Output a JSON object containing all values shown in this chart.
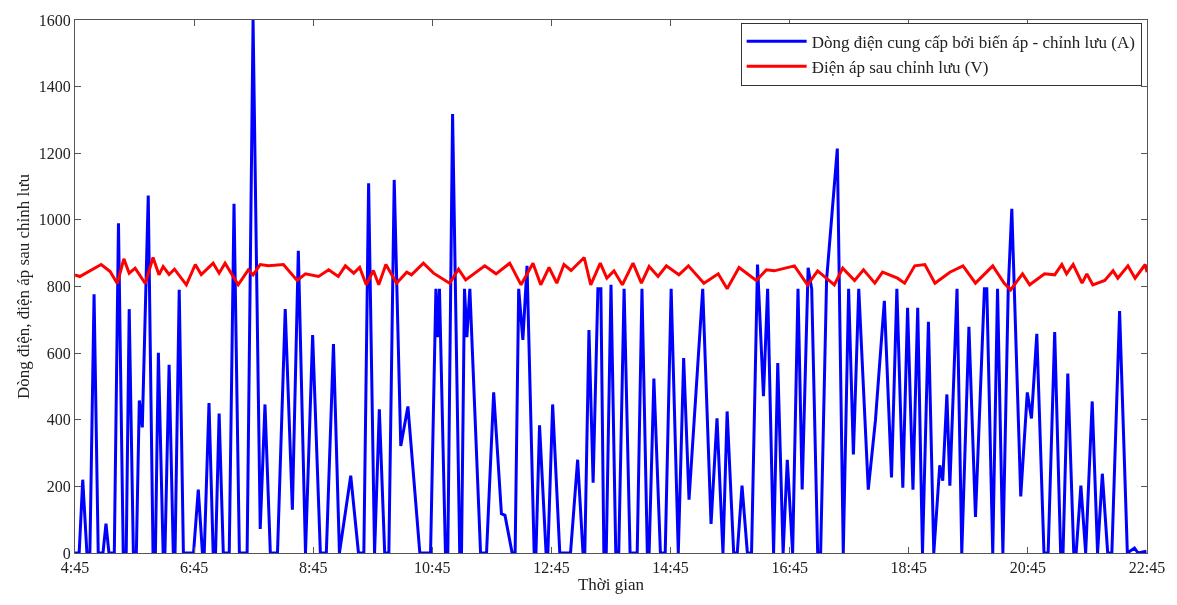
{
  "chart_data": {
    "type": "line",
    "xlabel": "Thời gian",
    "ylabel": "Dòng điện, điện áp sau chỉnh lưu",
    "xlim": [
      4.75,
      22.75
    ],
    "xticks": [
      {
        "value": 4.75,
        "label": "4:45"
      },
      {
        "value": 6.75,
        "label": "6:45"
      },
      {
        "value": 8.75,
        "label": "8:45"
      },
      {
        "value": 10.75,
        "label": "10:45"
      },
      {
        "value": 12.75,
        "label": "12:45"
      },
      {
        "value": 14.75,
        "label": "14:45"
      },
      {
        "value": 16.75,
        "label": "16:45"
      },
      {
        "value": 18.75,
        "label": "18:45"
      },
      {
        "value": 20.75,
        "label": "20:45"
      },
      {
        "value": 22.75,
        "label": "22:45"
      }
    ],
    "ylim": [
      0,
      1600
    ],
    "yticks": [
      0,
      200,
      400,
      600,
      800,
      1000,
      1200,
      1400,
      1600
    ],
    "legend": "top right",
    "line_style": "solid",
    "marker": "none",
    "series": [
      {
        "name": "Dòng điện cung cấp bởi biến áp - chỉnh lưu (A)",
        "color": "#0000ff",
        "x": [
          4.75,
          4.82,
          4.88,
          4.95,
          5.0,
          5.07,
          5.14,
          5.22,
          5.27,
          5.32,
          5.41,
          5.48,
          5.56,
          5.61,
          5.66,
          5.73,
          5.78,
          5.83,
          5.88,
          5.98,
          6.06,
          6.1,
          6.15,
          6.23,
          6.26,
          6.33,
          6.4,
          6.43,
          6.5,
          6.57,
          6.74,
          6.82,
          6.89,
          6.92,
          7.0,
          7.07,
          7.11,
          7.17,
          7.24,
          7.34,
          7.42,
          7.51,
          7.64,
          7.74,
          7.86,
          7.94,
          8.03,
          8.15,
          8.28,
          8.4,
          8.5,
          8.62,
          8.74,
          8.87,
          8.97,
          9.09,
          9.19,
          9.38,
          9.51,
          9.6,
          9.68,
          9.78,
          9.86,
          9.95,
          10.02,
          10.11,
          10.22,
          10.34,
          10.54,
          10.72,
          10.81,
          10.84,
          10.87,
          10.97,
          11.01,
          11.09,
          11.21,
          11.24,
          11.29,
          11.33,
          11.38,
          11.56,
          11.66,
          11.78,
          11.91,
          11.97,
          12.09,
          12.14,
          12.2,
          12.27,
          12.34,
          12.46,
          12.49,
          12.55,
          12.66,
          12.69,
          12.77,
          12.89,
          13.07,
          13.19,
          13.28,
          13.31,
          13.38,
          13.45,
          13.53,
          13.58,
          13.63,
          13.67,
          13.75,
          13.83,
          13.88,
          13.97,
          14.07,
          14.19,
          14.27,
          14.36,
          14.39,
          14.47,
          14.58,
          14.66,
          14.76,
          14.88,
          14.97,
          15.06,
          15.29,
          15.43,
          15.53,
          15.63,
          15.7,
          15.81,
          15.87,
          15.95,
          16.04,
          16.11,
          16.21,
          16.31,
          16.38,
          16.48,
          16.55,
          16.64,
          16.71,
          16.8,
          16.89,
          16.96,
          17.06,
          17.12,
          17.22,
          17.27,
          17.37,
          17.55,
          17.65,
          17.74,
          17.82,
          17.91,
          18.07,
          18.19,
          18.34,
          18.46,
          18.55,
          18.65,
          18.73,
          18.82,
          18.9,
          18.98,
          19.08,
          19.17,
          19.27,
          19.32,
          19.39,
          19.44,
          19.56,
          19.64,
          19.76,
          19.87,
          20.02,
          20.06,
          20.16,
          20.24,
          20.33,
          20.42,
          20.48,
          20.63,
          20.74,
          20.81,
          20.9,
          21.02,
          21.09,
          21.2,
          21.3,
          21.34,
          21.42,
          21.52,
          21.56,
          21.64,
          21.72,
          21.83,
          21.92,
          22.0,
          22.09,
          22.16,
          22.29,
          22.42,
          22.54,
          22.6,
          22.74
        ],
        "values": [
          0,
          0,
          220,
          0,
          0,
          777,
          0,
          0,
          88,
          0,
          0,
          990,
          0,
          0,
          732,
          0,
          0,
          458,
          377,
          1073,
          0,
          0,
          601,
          0,
          0,
          565,
          0,
          0,
          790,
          0,
          0,
          190,
          0,
          0,
          450,
          0,
          0,
          419,
          0,
          0,
          1048,
          0,
          0,
          1600,
          72,
          446,
          0,
          0,
          732,
          130,
          907,
          0,
          654,
          0,
          0,
          627,
          0,
          232,
          0,
          0,
          1110,
          0,
          431,
          0,
          0,
          1120,
          321,
          440,
          0,
          0,
          793,
          648,
          793,
          0,
          0,
          1318,
          0,
          0,
          793,
          648,
          793,
          0,
          0,
          482,
          118,
          113,
          0,
          0,
          793,
          640,
          862,
          0,
          0,
          383,
          0,
          0,
          446,
          0,
          0,
          280,
          0,
          0,
          669,
          211,
          793,
          793,
          0,
          0,
          805,
          0,
          0,
          793,
          0,
          0,
          793,
          0,
          0,
          524,
          0,
          0,
          793,
          0,
          585,
          160,
          793,
          87,
          404,
          0,
          425,
          0,
          0,
          202,
          0,
          0,
          866,
          471,
          793,
          0,
          570,
          0,
          280,
          0,
          793,
          191,
          856,
          793,
          0,
          0,
          820,
          1214,
          0,
          793,
          296,
          793,
          190,
          398,
          757,
          227,
          793,
          196,
          736,
          190,
          736,
          0,
          694,
          0,
          263,
          217,
          476,
          202,
          793,
          0,
          679,
          108,
          793,
          793,
          0,
          793,
          0,
          793,
          1033,
          170,
          482,
          404,
          658,
          0,
          0,
          663,
          0,
          0,
          539,
          0,
          0,
          202,
          0,
          455,
          0,
          238,
          0,
          0,
          726,
          0,
          15,
          0,
          5
        ]
      },
      {
        "name": "Điện áp sau chỉnh lưu (V)",
        "color": "#ff0000",
        "x": [
          4.75,
          4.83,
          5.19,
          5.34,
          5.46,
          5.57,
          5.66,
          5.76,
          5.93,
          6.06,
          6.16,
          6.23,
          6.33,
          6.42,
          6.62,
          6.77,
          6.87,
          7.07,
          7.17,
          7.27,
          7.49,
          7.66,
          7.74,
          7.86,
          8.0,
          8.25,
          8.48,
          8.62,
          8.84,
          9.01,
          9.17,
          9.29,
          9.43,
          9.53,
          9.64,
          9.76,
          9.85,
          9.97,
          10.15,
          10.32,
          10.4,
          10.6,
          10.77,
          11.04,
          11.19,
          11.31,
          11.63,
          11.82,
          12.05,
          12.24,
          12.44,
          12.57,
          12.71,
          12.84,
          12.96,
          13.08,
          13.3,
          13.41,
          13.57,
          13.68,
          13.8,
          13.94,
          14.12,
          14.26,
          14.39,
          14.54,
          14.68,
          14.89,
          15.05,
          15.31,
          15.55,
          15.7,
          15.9,
          16.19,
          16.36,
          16.49,
          16.83,
          17.05,
          17.22,
          17.5,
          17.64,
          17.84,
          17.99,
          18.18,
          18.31,
          18.56,
          18.68,
          18.85,
          19.02,
          19.19,
          19.44,
          19.66,
          19.87,
          20.16,
          20.35,
          20.46,
          20.66,
          20.78,
          21.03,
          21.2,
          21.32,
          21.4,
          21.51,
          21.66,
          21.74,
          21.84,
          22.04,
          22.18,
          22.26,
          22.43,
          22.55,
          22.72,
          22.75
        ],
        "values": [
          835,
          830,
          866,
          845,
          809,
          883,
          840,
          855,
          809,
          887,
          835,
          860,
          836,
          852,
          805,
          866,
          836,
          870,
          840,
          870,
          805,
          850,
          835,
          866,
          862,
          866,
          818,
          838,
          830,
          850,
          830,
          862,
          840,
          857,
          805,
          848,
          805,
          866,
          810,
          843,
          835,
          870,
          840,
          810,
          852,
          820,
          862,
          838,
          870,
          805,
          870,
          805,
          857,
          810,
          866,
          848,
          887,
          805,
          870,
          825,
          847,
          805,
          870,
          810,
          860,
          830,
          862,
          835,
          862,
          810,
          838,
          793,
          857,
          818,
          850,
          847,
          862,
          805,
          847,
          805,
          855,
          818,
          850,
          810,
          843,
          825,
          810,
          862,
          866,
          810,
          843,
          862,
          810,
          862,
          810,
          790,
          838,
          805,
          838,
          835,
          866,
          838,
          866,
          810,
          838,
          805,
          818,
          847,
          825,
          862,
          825,
          866,
          843
        ]
      }
    ]
  }
}
